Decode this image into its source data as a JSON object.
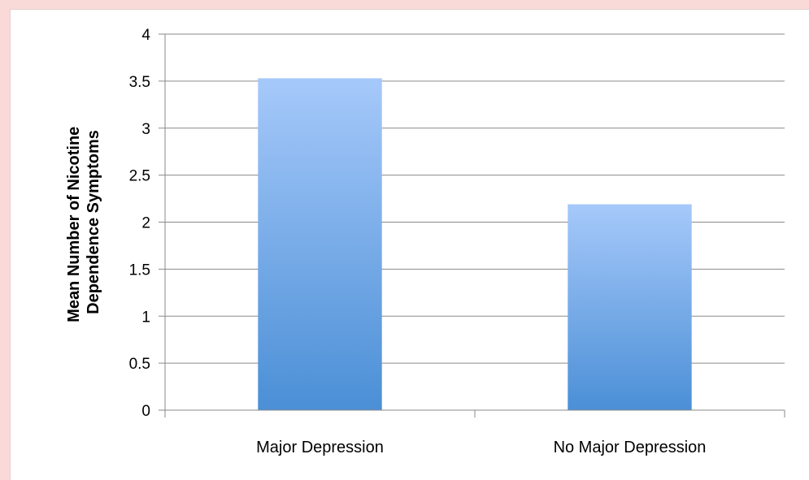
{
  "chart_data": {
    "type": "bar",
    "categories": [
      "Major Depression",
      "No Major Depression"
    ],
    "values": [
      3.53,
      2.19
    ],
    "title": "",
    "xlabel": "",
    "ylabel": "Mean Number of Nicotine Dependence Symptoms",
    "ylabel_lines": [
      "Mean Number of Nicotine",
      "Dependence Symptoms"
    ],
    "ylim": [
      0,
      4
    ],
    "yticks": [
      "0",
      "0.5",
      "1",
      "1.5",
      "2",
      "2.5",
      "3",
      "3.5",
      "4"
    ],
    "grid": true,
    "legend": "none",
    "colors": {
      "bar_top": "#a6c9fa",
      "bar_bottom": "#4b8fd6",
      "grid": "#8a8a8a",
      "background": "#fad9d9"
    }
  }
}
